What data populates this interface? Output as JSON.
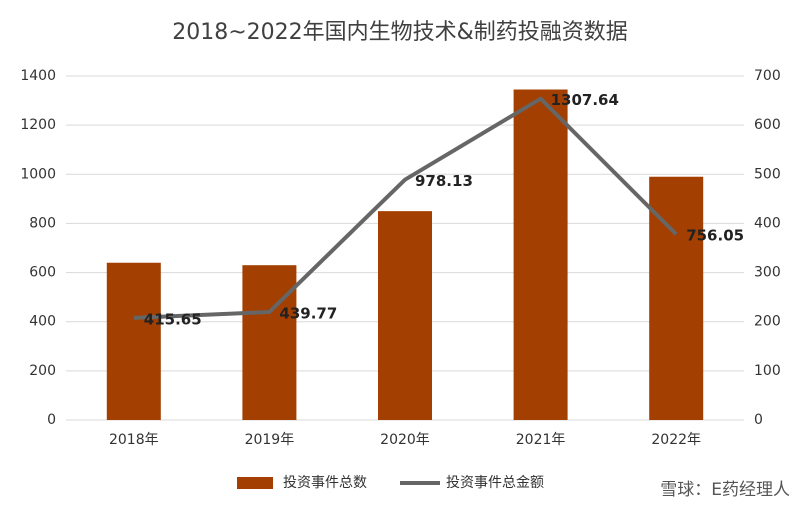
{
  "chart_data": {
    "type": "bar_line",
    "title": "2018~2022年国内生物技术&制药投融资数据",
    "categories": [
      "2018年",
      "2019年",
      "2020年",
      "2021年",
      "2022年"
    ],
    "series": [
      {
        "name": "投资事件总数",
        "type": "bar",
        "color": "#a33f00",
        "values": [
          640,
          630,
          850,
          1345,
          990
        ]
      },
      {
        "name": "投资事件总金额",
        "type": "line",
        "color": "#666666",
        "values": [
          415.65,
          439.77,
          978.13,
          1307.64,
          756.05
        ]
      }
    ],
    "ylim": [
      0,
      1400
    ],
    "yticks": [
      0,
      200,
      400,
      600,
      800,
      1000,
      1200,
      1400
    ],
    "y2lim": [
      0,
      700
    ],
    "y2ticks": [
      0,
      100,
      200,
      300,
      400,
      500,
      600,
      700
    ],
    "grid": true,
    "legend": "bottom",
    "watermark": "雪球：E药经理人"
  }
}
